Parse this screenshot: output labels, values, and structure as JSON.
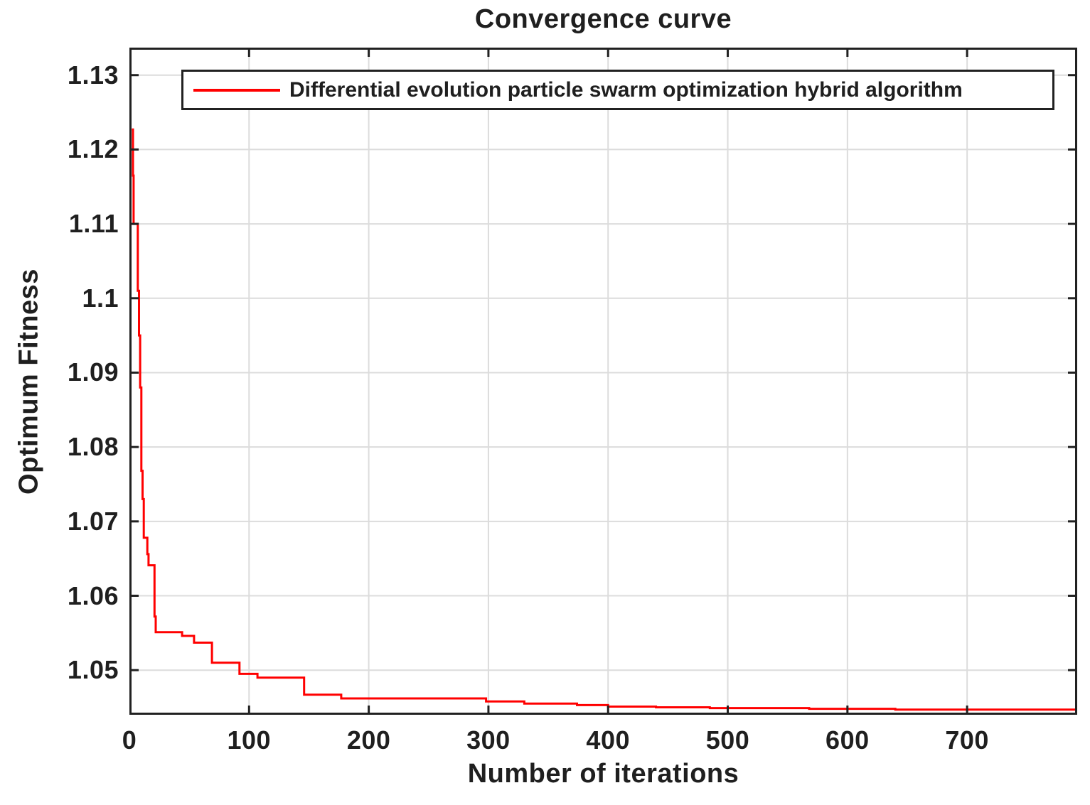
{
  "figure": {
    "title": "Convergence curve"
  },
  "colors": {
    "axis": "#212121",
    "grid": "#dcdcdc",
    "text": "#1f1f1f",
    "curve": "#ff0000",
    "legend_border": "#212121",
    "legend_background": "#ffffff",
    "plot_background": "#ffffff"
  },
  "legend": {
    "position": "top-inside",
    "entries": [
      {
        "label": "Differential evolution particle swarm optimization hybrid algorithm",
        "line_color": "#ff0000"
      }
    ]
  },
  "chart_data": {
    "type": "line",
    "title": "Convergence curve",
    "xlabel": "Number of iterations",
    "ylabel": "Optimum Fitness",
    "xlim": [
      0,
      792
    ],
    "ylim": [
      1.044,
      1.1337
    ],
    "grid": true,
    "x_ticks": [
      0,
      100,
      200,
      300,
      400,
      500,
      600,
      700
    ],
    "x_tick_labels": [
      "0",
      "100",
      "200",
      "300",
      "400",
      "500",
      "600",
      "700"
    ],
    "y_ticks": [
      1.05,
      1.06,
      1.07,
      1.08,
      1.09,
      1.1,
      1.11,
      1.12,
      1.13
    ],
    "y_tick_labels": [
      "1.05",
      "1.06",
      "1.07",
      "1.08",
      "1.09",
      "1.1",
      "1.11",
      "1.12",
      "1.13"
    ],
    "series": [
      {
        "name": "Differential evolution particle swarm optimization hybrid algorithm",
        "color": "#ff0000",
        "line_width": 3,
        "step": true,
        "points": [
          [
            2,
            1.1227
          ],
          [
            3,
            1.1227
          ],
          [
            3,
            1.1165
          ],
          [
            3.5,
            1.1165
          ],
          [
            3.5,
            1.11
          ],
          [
            7,
            1.11
          ],
          [
            7,
            1.101
          ],
          [
            8,
            1.101
          ],
          [
            8,
            1.095
          ],
          [
            9,
            1.095
          ],
          [
            9,
            1.088
          ],
          [
            10,
            1.088
          ],
          [
            10,
            1.0768
          ],
          [
            11,
            1.0768
          ],
          [
            11,
            1.073
          ],
          [
            12,
            1.073
          ],
          [
            12,
            1.0678
          ],
          [
            15,
            1.0678
          ],
          [
            15,
            1.0656
          ],
          [
            16,
            1.0656
          ],
          [
            16,
            1.0641
          ],
          [
            21,
            1.0641
          ],
          [
            21,
            1.0572
          ],
          [
            22,
            1.0572
          ],
          [
            22,
            1.0551
          ],
          [
            44,
            1.0551
          ],
          [
            44,
            1.0546
          ],
          [
            54,
            1.0546
          ],
          [
            54,
            1.0537
          ],
          [
            69,
            1.0537
          ],
          [
            69,
            1.051
          ],
          [
            92,
            1.051
          ],
          [
            92,
            1.0495
          ],
          [
            107,
            1.0495
          ],
          [
            107,
            1.049
          ],
          [
            146,
            1.049
          ],
          [
            146,
            1.0467
          ],
          [
            177,
            1.0467
          ],
          [
            177,
            1.0462
          ],
          [
            298,
            1.0462
          ],
          [
            298,
            1.0458
          ],
          [
            330,
            1.0458
          ],
          [
            330,
            1.0455
          ],
          [
            374,
            1.0455
          ],
          [
            374,
            1.0453
          ],
          [
            400,
            1.0453
          ],
          [
            400,
            1.0451
          ],
          [
            440,
            1.0451
          ],
          [
            440,
            1.045
          ],
          [
            485,
            1.045
          ],
          [
            485,
            1.0449
          ],
          [
            568,
            1.0449
          ],
          [
            568,
            1.0448
          ],
          [
            640,
            1.0448
          ],
          [
            640,
            1.0447
          ],
          [
            792,
            1.0447
          ]
        ]
      }
    ]
  }
}
